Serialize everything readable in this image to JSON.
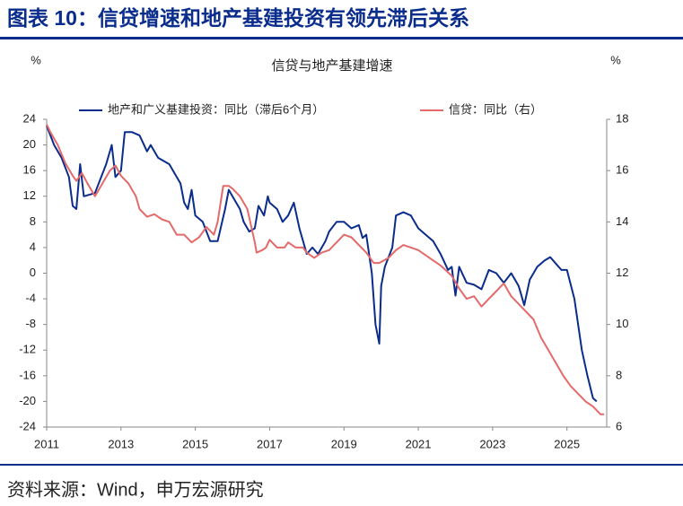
{
  "header": {
    "title": "图表 10：信贷增速和地产基建投资有领先滞后关系"
  },
  "footer": {
    "source": "资料来源：Wind，申万宏源研究"
  },
  "chart_data": {
    "type": "line",
    "title": "信贷与地产基建增速",
    "y_unit": "%",
    "y2_unit": "%",
    "xlim": [
      2011,
      2026.07
    ],
    "xticks": [
      2011,
      2013,
      2015,
      2017,
      2019,
      2021,
      2023,
      2025
    ],
    "ylim": [
      -24,
      24
    ],
    "yticks": [
      24,
      20,
      16,
      12,
      8,
      4,
      0,
      -4,
      -8,
      -12,
      -16,
      -20,
      -24
    ],
    "y2lim": [
      6,
      18
    ],
    "y2ticks": [
      18,
      16,
      14,
      12,
      10,
      8,
      6
    ],
    "legend": "top",
    "series": [
      {
        "name": "地产和广义基建投资：同比（滞后6个月）",
        "color": "#0a2c8c",
        "axis": "y",
        "x": [
          2011.0,
          2011.2,
          2011.4,
          2011.6,
          2011.7,
          2011.8,
          2011.9,
          2012.0,
          2012.3,
          2012.6,
          2012.75,
          2012.85,
          2013.0,
          2013.1,
          2013.3,
          2013.5,
          2013.7,
          2013.8,
          2014.0,
          2014.3,
          2014.6,
          2014.7,
          2014.8,
          2014.9,
          2015.0,
          2015.2,
          2015.4,
          2015.6,
          2015.8,
          2015.9,
          2016.0,
          2016.2,
          2016.3,
          2016.45,
          2016.6,
          2016.7,
          2016.85,
          2016.95,
          2017.0,
          2017.2,
          2017.35,
          2017.5,
          2017.65,
          2017.8,
          2017.9,
          2018.0,
          2018.15,
          2018.3,
          2018.5,
          2018.6,
          2018.8,
          2019.0,
          2019.2,
          2019.4,
          2019.5,
          2019.6,
          2019.75,
          2019.85,
          2019.95,
          2020.0,
          2020.1,
          2020.3,
          2020.4,
          2020.6,
          2020.8,
          2021.0,
          2021.2,
          2021.4,
          2021.6,
          2021.8,
          2021.9,
          2022.0,
          2022.1,
          2022.3,
          2022.5,
          2022.7,
          2022.9,
          2023.1,
          2023.3,
          2023.5,
          2023.7,
          2023.85,
          2024.0,
          2024.2,
          2024.4,
          2024.55,
          2024.7,
          2024.85,
          2025.0,
          2025.2,
          2025.4,
          2025.55,
          2025.7,
          2025.8
        ],
        "values": [
          23,
          20,
          18,
          15,
          10.5,
          10,
          17,
          12,
          12.5,
          17,
          20,
          15,
          16,
          22,
          22,
          21.5,
          19,
          20,
          18,
          17,
          14,
          11,
          10,
          13,
          9,
          8,
          5,
          5,
          10,
          13,
          12,
          10,
          8,
          6.5,
          7,
          10.5,
          9,
          12,
          11,
          10,
          8,
          9,
          11,
          7,
          5,
          3,
          4,
          3,
          5,
          6.5,
          8,
          8,
          7,
          7.5,
          5.5,
          6,
          0,
          -8,
          -11,
          -2,
          1,
          4,
          9,
          9.5,
          9,
          7,
          6,
          5,
          3,
          0.5,
          1,
          -3.5,
          1,
          -1.5,
          -1.8,
          -2.5,
          0.5,
          0,
          -1.5,
          0,
          -2,
          -5,
          -1,
          1,
          2,
          2.5,
          1.5,
          0.5,
          0.5,
          -4,
          -12,
          -16,
          -19.5,
          -20
        ]
      },
      {
        "name": "信贷：同比（右）",
        "color": "#e46a6a",
        "axis": "y2",
        "x": [
          2011.0,
          2011.1,
          2011.3,
          2011.5,
          2011.7,
          2011.8,
          2011.95,
          2012.1,
          2012.3,
          2012.5,
          2012.7,
          2012.85,
          2013.0,
          2013.2,
          2013.4,
          2013.5,
          2013.7,
          2013.9,
          2014.1,
          2014.3,
          2014.5,
          2014.7,
          2014.9,
          2015.1,
          2015.3,
          2015.5,
          2015.6,
          2015.75,
          2015.9,
          2016.0,
          2016.2,
          2016.4,
          2016.6,
          2016.65,
          2016.8,
          2016.9,
          2017.0,
          2017.2,
          2017.4,
          2017.5,
          2017.7,
          2017.9,
          2018.0,
          2018.2,
          2018.4,
          2018.6,
          2018.8,
          2019.0,
          2019.2,
          2019.4,
          2019.6,
          2019.8,
          2019.95,
          2020.2,
          2020.4,
          2020.6,
          2020.8,
          2021.0,
          2021.3,
          2021.6,
          2021.9,
          2022.1,
          2022.3,
          2022.5,
          2022.7,
          2022.9,
          2023.1,
          2023.3,
          2023.5,
          2023.7,
          2023.9,
          2024.1,
          2024.3,
          2024.5,
          2024.7,
          2024.9,
          2025.1,
          2025.3,
          2025.5,
          2025.7,
          2025.9,
          2026.0
        ],
        "values": [
          17.8,
          17.5,
          17,
          16.3,
          15.8,
          15.6,
          15.9,
          15.5,
          15.0,
          15.5,
          16.0,
          16.2,
          15.8,
          15.5,
          15,
          14.5,
          14.2,
          14.3,
          14.1,
          14,
          13.5,
          13.5,
          13.2,
          13.4,
          13.8,
          13.5,
          14,
          15.4,
          15.4,
          15.3,
          15.0,
          14.5,
          13.2,
          12.8,
          12.9,
          13.0,
          13.3,
          13.0,
          13,
          13.2,
          13.0,
          13.0,
          12.8,
          12.6,
          12.8,
          12.9,
          13.2,
          13.5,
          13.4,
          13.1,
          12.8,
          12.4,
          12.4,
          12.6,
          12.9,
          13.1,
          13.0,
          12.9,
          12.6,
          12.3,
          11.9,
          11.4,
          11.0,
          11.1,
          10.7,
          11.0,
          11.3,
          11.6,
          11.1,
          10.8,
          10.5,
          10.2,
          9.5,
          9.0,
          8.5,
          8.0,
          7.6,
          7.3,
          7.0,
          6.8,
          6.5,
          6.5
        ]
      }
    ]
  }
}
